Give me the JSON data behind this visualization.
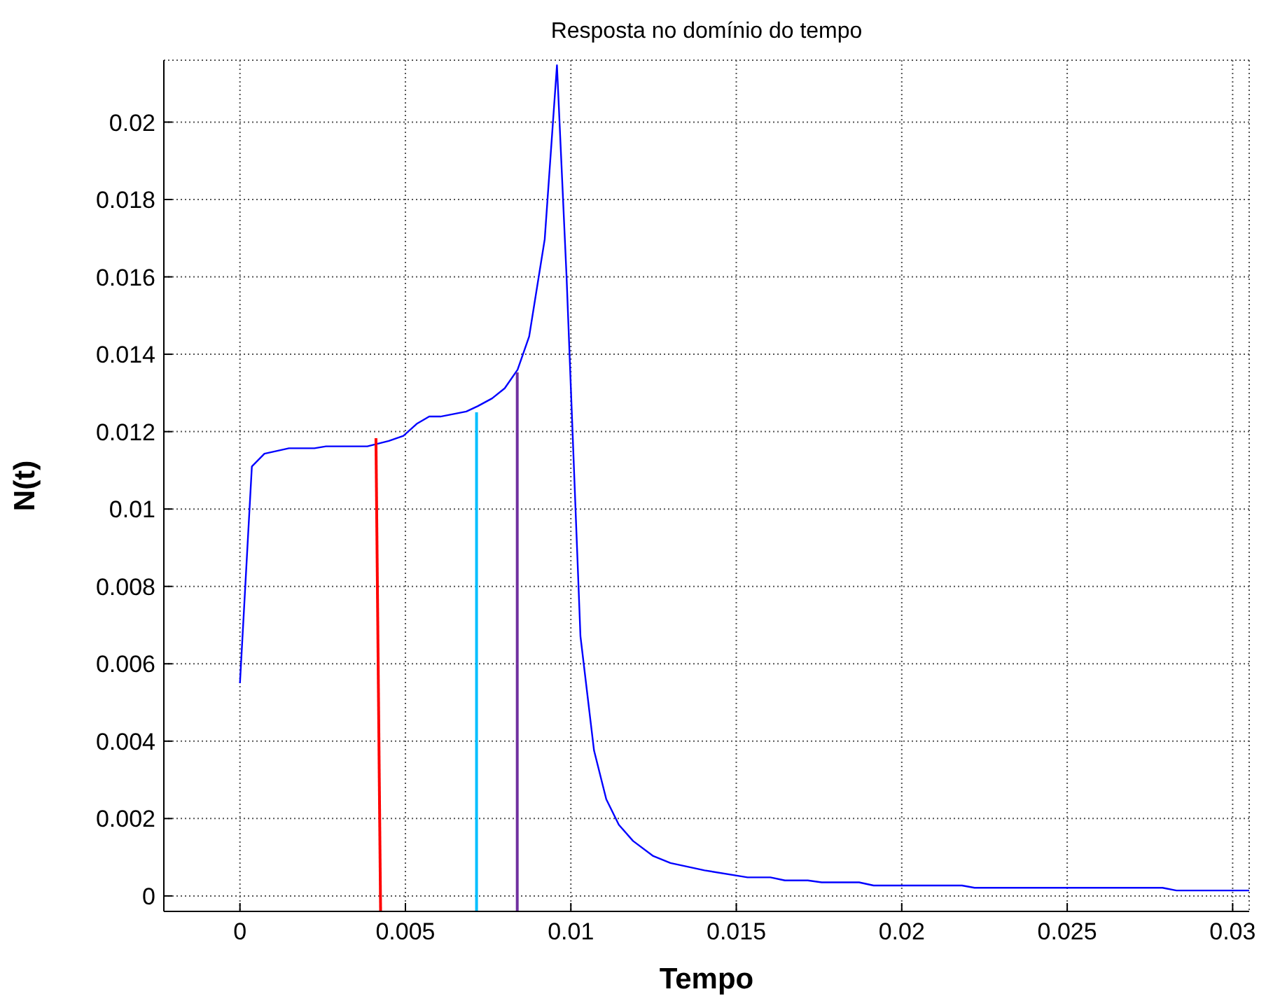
{
  "chart_data": {
    "type": "line",
    "title": "Resposta no domínio do tempo",
    "xlabel": "Tempo",
    "ylabel": "N(t)",
    "xlim": [
      -0.0023,
      0.0305
    ],
    "xticks": [
      0,
      0.005,
      0.01,
      0.015,
      0.02,
      0.025,
      0.03
    ],
    "ylim": [
      -0.0004,
      0.0216
    ],
    "yticks": [
      0,
      0.002,
      0.004,
      0.006,
      0.008,
      0.01,
      0.012,
      0.014,
      0.016,
      0.018,
      0.02
    ],
    "grid": true,
    "marker": "none",
    "line_style": "solid",
    "series": [
      {
        "color": "#0000ff",
        "x": [
          0,
          0.00036,
          0.00074,
          0.00148,
          0.00225,
          0.0026,
          0.00385,
          0.0045,
          0.00494,
          0.00534,
          0.00572,
          0.00606,
          0.00684,
          0.00719,
          0.00762,
          0.008,
          0.00839,
          0.00874,
          0.00921,
          0.00958,
          0.00987,
          0.01029,
          0.0107,
          0.01107,
          0.01145,
          0.01188,
          0.01249,
          0.01301,
          0.01404,
          0.01534,
          0.01603,
          0.01647,
          0.01716,
          0.01758,
          0.01871,
          0.01915,
          0.02182,
          0.0222,
          0.02788,
          0.0283,
          0.0305
        ],
        "values": [
          0.0055,
          0.0111,
          0.01143,
          0.01157,
          0.01157,
          0.01162,
          0.01162,
          0.01176,
          0.01189,
          0.0122,
          0.01239,
          0.01239,
          0.01252,
          0.01266,
          0.01286,
          0.01312,
          0.0136,
          0.01446,
          0.01697,
          0.02147,
          0.01601,
          0.00671,
          0.00376,
          0.0025,
          0.00184,
          0.00142,
          0.00103,
          0.00085,
          0.00066,
          0.00048,
          0.00048,
          0.0004,
          0.0004,
          0.00035,
          0.00035,
          0.00027,
          0.00027,
          0.00021,
          0.00021,
          0.00014,
          0.00014
        ]
      },
      {
        "color": "#ff0000",
        "x": [
          0.00411,
          0.00425
        ],
        "values": [
          0.01183,
          -0.0004
        ]
      },
      {
        "color": "#00bfff",
        "x": [
          0.00715,
          0.00715
        ],
        "values": [
          0.0125,
          -0.0004
        ]
      },
      {
        "color": "#7030a0",
        "x": [
          0.00838,
          0.00838
        ],
        "values": [
          0.01353,
          -0.0004
        ]
      }
    ]
  }
}
